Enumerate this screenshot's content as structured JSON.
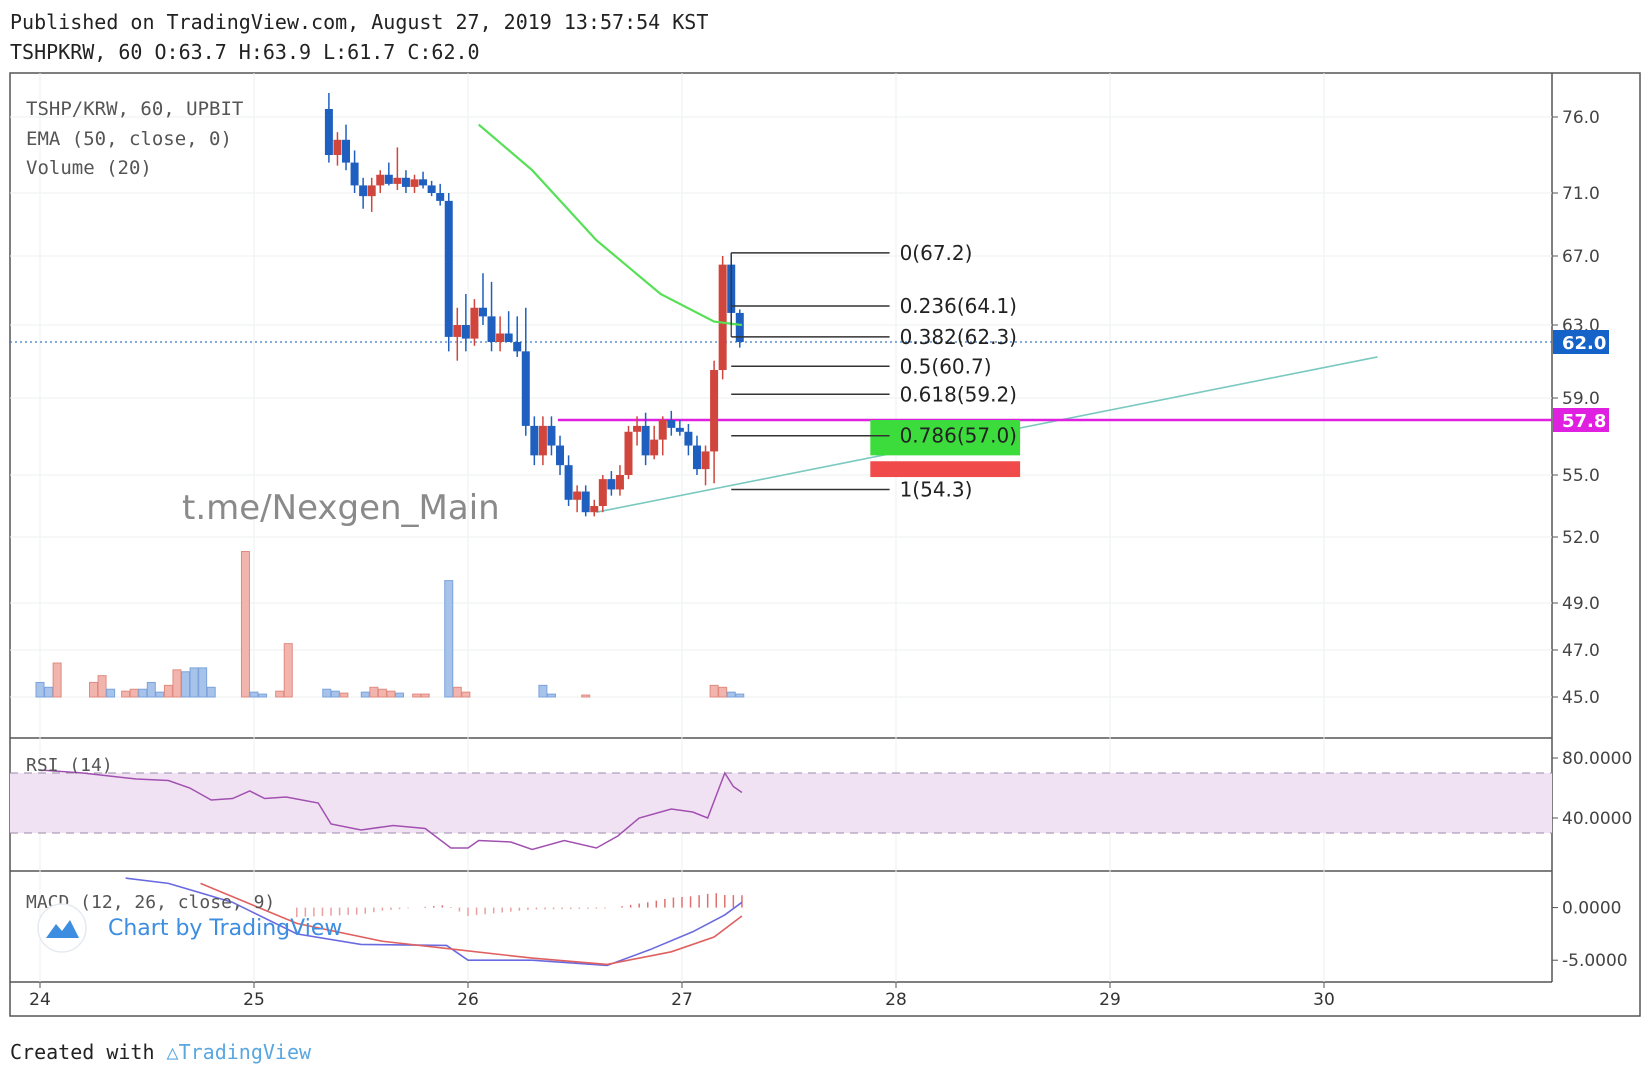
{
  "header": {
    "published": "Published on TradingView.com, August 27, 2019 13:57:54 KST",
    "ohlc": "TSHPKRW, 60 O:63.7 H:63.9 L:61.7 C:62.0"
  },
  "legend": {
    "symbol": "TSHP/KRW, 60, UPBIT",
    "ema": "EMA (50, close, 0)",
    "volume": "Volume (20)"
  },
  "watermark": "t.me/Nexgen_Main",
  "footer": {
    "created": "Created with",
    "brand": "TradingView"
  },
  "colors": {
    "up": "#d0453c",
    "down": "#1f5fbf",
    "ema": "#55e055",
    "fib": "#333333",
    "resistance": "#e020e0",
    "trend": "#79c9c0",
    "price_tag": "#1563c9",
    "rsi_band": "#f1e2f3",
    "rsi_line": "#a050b0",
    "macd_line": "#6a6ae0",
    "signal_line": "#e06060",
    "tp_box": "#3ddc3d",
    "sl_box": "#f04a4a"
  },
  "chart_data": [
    {
      "type": "candlestick",
      "title": "TSHP/KRW, 60, UPBIT",
      "x_ticks": [
        "24",
        "25",
        "26",
        "27",
        "28",
        "29",
        "30"
      ],
      "y_ticks": [
        "76.0",
        "71.0",
        "67.0",
        "63.0",
        "59.0",
        "55.0",
        "52.0",
        "49.0",
        "47.0",
        "45.0"
      ],
      "last_price": "62.0",
      "resistance_label": "57.8",
      "resistance": 57.8,
      "candles": [
        {
          "t": 25.35,
          "o": 76.5,
          "h": 77.5,
          "l": 73.0,
          "c": 73.5
        },
        {
          "t": 25.39,
          "o": 73.5,
          "h": 75.0,
          "l": 72.8,
          "c": 74.5
        },
        {
          "t": 25.43,
          "o": 74.5,
          "h": 75.5,
          "l": 72.5,
          "c": 73.0
        },
        {
          "t": 25.47,
          "o": 73.0,
          "h": 73.8,
          "l": 71.0,
          "c": 71.5
        },
        {
          "t": 25.51,
          "o": 71.5,
          "h": 72.0,
          "l": 70.0,
          "c": 70.8
        },
        {
          "t": 25.55,
          "o": 70.8,
          "h": 72.0,
          "l": 69.8,
          "c": 71.5
        },
        {
          "t": 25.59,
          "o": 71.5,
          "h": 72.5,
          "l": 71.0,
          "c": 72.2
        },
        {
          "t": 25.63,
          "o": 72.2,
          "h": 73.0,
          "l": 71.5,
          "c": 71.6
        },
        {
          "t": 25.67,
          "o": 71.6,
          "h": 74.0,
          "l": 71.2,
          "c": 72.0
        },
        {
          "t": 25.71,
          "o": 72.0,
          "h": 72.5,
          "l": 71.0,
          "c": 71.4
        },
        {
          "t": 25.75,
          "o": 71.4,
          "h": 72.2,
          "l": 71.0,
          "c": 71.9
        },
        {
          "t": 25.79,
          "o": 71.9,
          "h": 72.4,
          "l": 71.3,
          "c": 71.5
        },
        {
          "t": 25.83,
          "o": 71.5,
          "h": 71.8,
          "l": 70.8,
          "c": 71.0
        },
        {
          "t": 25.87,
          "o": 71.0,
          "h": 71.6,
          "l": 70.2,
          "c": 70.5
        },
        {
          "t": 25.91,
          "o": 70.5,
          "h": 71.0,
          "l": 61.5,
          "c": 62.3
        },
        {
          "t": 25.95,
          "o": 62.3,
          "h": 64.0,
          "l": 61.0,
          "c": 63.0
        },
        {
          "t": 25.99,
          "o": 63.0,
          "h": 64.8,
          "l": 61.5,
          "c": 62.2
        },
        {
          "t": 26.03,
          "o": 62.2,
          "h": 64.5,
          "l": 61.8,
          "c": 64.0
        },
        {
          "t": 26.07,
          "o": 64.0,
          "h": 66.0,
          "l": 63.0,
          "c": 63.5
        },
        {
          "t": 26.11,
          "o": 63.5,
          "h": 65.5,
          "l": 61.5,
          "c": 62.0
        },
        {
          "t": 26.15,
          "o": 62.0,
          "h": 63.5,
          "l": 61.5,
          "c": 62.5
        },
        {
          "t": 26.19,
          "o": 62.5,
          "h": 63.8,
          "l": 62.0,
          "c": 62.0
        },
        {
          "t": 26.23,
          "o": 62.0,
          "h": 63.5,
          "l": 61.2,
          "c": 61.5
        },
        {
          "t": 26.27,
          "o": 61.5,
          "h": 64.0,
          "l": 57.0,
          "c": 57.5
        },
        {
          "t": 26.31,
          "o": 57.5,
          "h": 58.0,
          "l": 55.5,
          "c": 56.0
        },
        {
          "t": 26.35,
          "o": 56.0,
          "h": 58.0,
          "l": 55.5,
          "c": 57.5
        },
        {
          "t": 26.39,
          "o": 57.5,
          "h": 58.0,
          "l": 56.0,
          "c": 56.5
        },
        {
          "t": 26.43,
          "o": 56.5,
          "h": 57.0,
          "l": 55.0,
          "c": 55.5
        },
        {
          "t": 26.47,
          "o": 55.5,
          "h": 56.0,
          "l": 53.5,
          "c": 53.8
        },
        {
          "t": 26.51,
          "o": 53.8,
          "h": 54.5,
          "l": 53.2,
          "c": 54.2
        },
        {
          "t": 26.55,
          "o": 54.2,
          "h": 54.5,
          "l": 53.0,
          "c": 53.2
        },
        {
          "t": 26.59,
          "o": 53.2,
          "h": 53.8,
          "l": 53.0,
          "c": 53.5
        },
        {
          "t": 26.63,
          "o": 53.5,
          "h": 55.0,
          "l": 53.2,
          "c": 54.8
        },
        {
          "t": 26.67,
          "o": 54.8,
          "h": 55.2,
          "l": 54.0,
          "c": 54.3
        },
        {
          "t": 26.71,
          "o": 54.3,
          "h": 55.5,
          "l": 54.0,
          "c": 55.0
        },
        {
          "t": 26.75,
          "o": 55.0,
          "h": 57.5,
          "l": 54.8,
          "c": 57.2
        },
        {
          "t": 26.79,
          "o": 57.2,
          "h": 58.0,
          "l": 56.5,
          "c": 57.5
        },
        {
          "t": 26.83,
          "o": 57.5,
          "h": 58.2,
          "l": 55.5,
          "c": 56.0
        },
        {
          "t": 26.87,
          "o": 56.0,
          "h": 57.5,
          "l": 55.8,
          "c": 56.8
        },
        {
          "t": 26.91,
          "o": 56.8,
          "h": 58.0,
          "l": 56.0,
          "c": 57.8
        },
        {
          "t": 26.95,
          "o": 57.8,
          "h": 58.3,
          "l": 57.0,
          "c": 57.4
        },
        {
          "t": 26.99,
          "o": 57.4,
          "h": 57.8,
          "l": 57.0,
          "c": 57.2
        },
        {
          "t": 27.03,
          "o": 57.2,
          "h": 57.6,
          "l": 56.0,
          "c": 56.5
        },
        {
          "t": 27.07,
          "o": 56.5,
          "h": 57.0,
          "l": 55.0,
          "c": 55.3
        },
        {
          "t": 27.11,
          "o": 55.3,
          "h": 56.5,
          "l": 54.5,
          "c": 56.2
        },
        {
          "t": 27.15,
          "o": 56.2,
          "h": 61.0,
          "l": 54.6,
          "c": 60.5
        },
        {
          "t": 27.19,
          "o": 60.5,
          "h": 67.0,
          "l": 60.0,
          "c": 66.5
        },
        {
          "t": 27.23,
          "o": 66.5,
          "h": 67.2,
          "l": 63.0,
          "c": 63.7
        },
        {
          "t": 27.27,
          "o": 63.7,
          "h": 63.9,
          "l": 61.7,
          "c": 62.0
        }
      ],
      "ema": [
        {
          "t": 26.05,
          "v": 75.5
        },
        {
          "t": 26.3,
          "v": 72.5
        },
        {
          "t": 26.6,
          "v": 68.0
        },
        {
          "t": 26.9,
          "v": 64.8
        },
        {
          "t": 27.15,
          "v": 63.2
        },
        {
          "t": 27.28,
          "v": 63.0
        }
      ],
      "fibonacci": [
        {
          "label": "0(67.2)",
          "price": 67.2
        },
        {
          "label": "0.236(64.1)",
          "price": 64.1
        },
        {
          "label": "0.382(62.3)",
          "price": 62.3
        },
        {
          "label": "0.5(60.7)",
          "price": 60.7
        },
        {
          "label": "0.618(59.2)",
          "price": 59.2
        },
        {
          "label": "0.786(57.0)",
          "price": 57.0
        },
        {
          "label": "1(54.3)",
          "price": 54.3
        }
      ],
      "trendline": [
        {
          "t": 26.6,
          "v": 53.2
        },
        {
          "t": 30.25,
          "v": 61.2
        }
      ],
      "target_box": {
        "t0": 27.88,
        "t1": 28.58,
        "p_high": 57.8,
        "p_low": 56.0
      },
      "stop_box": {
        "t0": 27.88,
        "t1": 28.58,
        "p_high": 55.7,
        "p_low": 54.9
      }
    },
    {
      "type": "bar",
      "title": "Volume (20)",
      "bars": [
        {
          "t": 24.0,
          "v": 15,
          "up": false
        },
        {
          "t": 24.04,
          "v": 10,
          "up": false
        },
        {
          "t": 24.08,
          "v": 35,
          "up": true
        },
        {
          "t": 24.25,
          "v": 15,
          "up": true
        },
        {
          "t": 24.29,
          "v": 22,
          "up": true
        },
        {
          "t": 24.33,
          "v": 8,
          "up": false
        },
        {
          "t": 24.4,
          "v": 6,
          "up": true
        },
        {
          "t": 24.44,
          "v": 8,
          "up": true
        },
        {
          "t": 24.48,
          "v": 8,
          "up": false
        },
        {
          "t": 24.52,
          "v": 15,
          "up": false
        },
        {
          "t": 24.56,
          "v": 5,
          "up": false
        },
        {
          "t": 24.6,
          "v": 12,
          "up": true
        },
        {
          "t": 24.64,
          "v": 28,
          "up": true
        },
        {
          "t": 24.68,
          "v": 26,
          "up": false
        },
        {
          "t": 24.72,
          "v": 30,
          "up": false
        },
        {
          "t": 24.76,
          "v": 30,
          "up": false
        },
        {
          "t": 24.8,
          "v": 10,
          "up": false
        },
        {
          "t": 24.96,
          "v": 150,
          "up": true
        },
        {
          "t": 25.0,
          "v": 5,
          "up": false
        },
        {
          "t": 25.04,
          "v": 3,
          "up": false
        },
        {
          "t": 25.12,
          "v": 6,
          "up": true
        },
        {
          "t": 25.16,
          "v": 55,
          "up": true
        },
        {
          "t": 25.34,
          "v": 8,
          "up": false
        },
        {
          "t": 25.38,
          "v": 6,
          "up": false
        },
        {
          "t": 25.42,
          "v": 4,
          "up": true
        },
        {
          "t": 25.52,
          "v": 5,
          "up": false
        },
        {
          "t": 25.56,
          "v": 10,
          "up": true
        },
        {
          "t": 25.6,
          "v": 8,
          "up": true
        },
        {
          "t": 25.64,
          "v": 6,
          "up": true
        },
        {
          "t": 25.68,
          "v": 4,
          "up": false
        },
        {
          "t": 25.76,
          "v": 3,
          "up": true
        },
        {
          "t": 25.8,
          "v": 3,
          "up": true
        },
        {
          "t": 25.91,
          "v": 120,
          "up": false
        },
        {
          "t": 25.95,
          "v": 10,
          "up": true
        },
        {
          "t": 25.99,
          "v": 5,
          "up": true
        },
        {
          "t": 26.35,
          "v": 12,
          "up": false
        },
        {
          "t": 26.39,
          "v": 3,
          "up": false
        },
        {
          "t": 26.55,
          "v": 2,
          "up": true
        },
        {
          "t": 27.15,
          "v": 12,
          "up": true
        },
        {
          "t": 27.19,
          "v": 10,
          "up": true
        },
        {
          "t": 27.23,
          "v": 5,
          "up": false
        },
        {
          "t": 27.27,
          "v": 3,
          "up": false
        }
      ]
    },
    {
      "type": "line",
      "title": "RSI (14)",
      "y_ticks": [
        "80.0000",
        "40.0000"
      ],
      "bands": [
        70,
        30
      ],
      "ylim": [
        10,
        90
      ],
      "points": [
        {
          "t": 24.0,
          "v": 72
        },
        {
          "t": 24.2,
          "v": 70
        },
        {
          "t": 24.45,
          "v": 66
        },
        {
          "t": 24.6,
          "v": 65
        },
        {
          "t": 24.7,
          "v": 60
        },
        {
          "t": 24.8,
          "v": 52
        },
        {
          "t": 24.9,
          "v": 53
        },
        {
          "t": 24.98,
          "v": 58
        },
        {
          "t": 25.05,
          "v": 53
        },
        {
          "t": 25.15,
          "v": 54
        },
        {
          "t": 25.3,
          "v": 50
        },
        {
          "t": 25.36,
          "v": 36
        },
        {
          "t": 25.5,
          "v": 32
        },
        {
          "t": 25.65,
          "v": 35
        },
        {
          "t": 25.8,
          "v": 33
        },
        {
          "t": 25.92,
          "v": 20
        },
        {
          "t": 26.0,
          "v": 20
        },
        {
          "t": 26.05,
          "v": 25
        },
        {
          "t": 26.2,
          "v": 24
        },
        {
          "t": 26.3,
          "v": 19
        },
        {
          "t": 26.45,
          "v": 25
        },
        {
          "t": 26.6,
          "v": 20
        },
        {
          "t": 26.7,
          "v": 28
        },
        {
          "t": 26.8,
          "v": 40
        },
        {
          "t": 26.95,
          "v": 46
        },
        {
          "t": 27.05,
          "v": 44
        },
        {
          "t": 27.12,
          "v": 40
        },
        {
          "t": 27.2,
          "v": 70
        },
        {
          "t": 27.24,
          "v": 61
        },
        {
          "t": 27.28,
          "v": 57
        }
      ]
    },
    {
      "type": "line",
      "title": "MACD (12, 26, close, 9)",
      "y_ticks": [
        "0.0000",
        "-5.0000"
      ],
      "ylim": [
        -6.5,
        3.0
      ],
      "macd": [
        {
          "t": 24.4,
          "v": 2.8
        },
        {
          "t": 24.6,
          "v": 2.3
        },
        {
          "t": 24.9,
          "v": 0.5
        },
        {
          "t": 25.2,
          "v": -2.5
        },
        {
          "t": 25.5,
          "v": -3.5
        },
        {
          "t": 25.9,
          "v": -3.6
        },
        {
          "t": 26.0,
          "v": -5.0
        },
        {
          "t": 26.3,
          "v": -5.0
        },
        {
          "t": 26.65,
          "v": -5.5
        },
        {
          "t": 26.85,
          "v": -4.0
        },
        {
          "t": 27.05,
          "v": -2.3
        },
        {
          "t": 27.2,
          "v": -0.7
        },
        {
          "t": 27.28,
          "v": 0.5
        }
      ],
      "signal": [
        {
          "t": 24.75,
          "v": 2.3
        },
        {
          "t": 25.2,
          "v": -1.5
        },
        {
          "t": 25.6,
          "v": -3.2
        },
        {
          "t": 25.95,
          "v": -4.0
        },
        {
          "t": 26.3,
          "v": -4.8
        },
        {
          "t": 26.65,
          "v": -5.4
        },
        {
          "t": 26.95,
          "v": -4.2
        },
        {
          "t": 27.15,
          "v": -2.8
        },
        {
          "t": 27.28,
          "v": -0.8
        }
      ],
      "histogram_from": 25.2,
      "histogram_to": 27.28,
      "branding": "Chart by TradingView"
    }
  ]
}
